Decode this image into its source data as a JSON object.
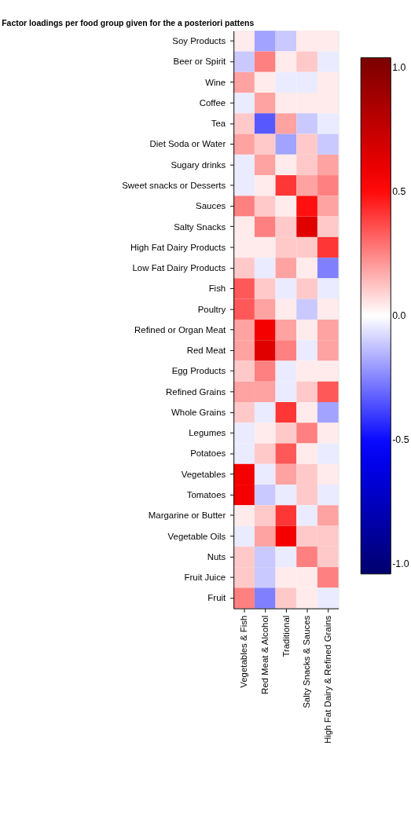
{
  "chart_data": {
    "type": "heatmap",
    "title": "Factor loadings per food group given for the a posteriori pattens",
    "categories": [
      "Vegetables & Fish",
      "Red Meat & Alcohol",
      "Traditional",
      "Salty Snacks & Sauces",
      "High Fat Dairy & Refined Grains"
    ],
    "y_categories": [
      "Soy Products",
      "Beer or Spirit",
      "Wine",
      "Coffee",
      "Tea",
      "Diet Soda or Water",
      "Sugary drinks",
      "Sweet snacks or Desserts",
      "Sauces",
      "Salty Snacks",
      "High Fat Dairy Products",
      "Low Fat Dairy Products",
      "Fish",
      "Poultry",
      "Refined or Organ Meat",
      "Red Meat",
      "Egg Products",
      "Refined Grains",
      "Whole Grains",
      "Legumes",
      "Potatoes",
      "Vegetables",
      "Tomatoes",
      "Margarine or Butter",
      "Vegetable Oils",
      "Nuts",
      "Fruit Juice",
      "Fruit"
    ],
    "cells": [
      [
        0.04,
        -0.19,
        -0.11,
        0.04,
        0.04
      ],
      [
        -0.11,
        0.26,
        0.04,
        0.11,
        -0.04
      ],
      [
        0.19,
        0.04,
        -0.04,
        -0.04,
        0.04
      ],
      [
        -0.04,
        0.19,
        0.04,
        0.04,
        0.04
      ],
      [
        0.11,
        -0.34,
        0.19,
        -0.11,
        -0.04
      ],
      [
        0.19,
        0.11,
        -0.19,
        0.11,
        -0.11
      ],
      [
        -0.04,
        0.19,
        0.04,
        0.11,
        0.19
      ],
      [
        -0.04,
        0.04,
        0.41,
        0.19,
        0.26
      ],
      [
        0.26,
        0.11,
        0.04,
        0.49,
        0.19
      ],
      [
        0.04,
        0.26,
        0.11,
        0.64,
        0.11
      ],
      [
        0.04,
        0.04,
        0.11,
        0.11,
        0.41
      ],
      [
        0.11,
        -0.04,
        0.19,
        0.04,
        -0.26
      ],
      [
        0.34,
        0.11,
        -0.04,
        0.11,
        -0.04
      ],
      [
        0.34,
        0.19,
        0.04,
        -0.11,
        0.04
      ],
      [
        0.19,
        0.56,
        0.19,
        0.04,
        0.19
      ],
      [
        0.19,
        0.64,
        0.26,
        -0.04,
        0.19
      ],
      [
        0.11,
        0.26,
        -0.04,
        0.04,
        0.04
      ],
      [
        0.19,
        0.19,
        -0.04,
        0.11,
        0.34
      ],
      [
        0.11,
        -0.04,
        0.41,
        0.04,
        -0.19
      ],
      [
        -0.04,
        0.04,
        0.11,
        0.26,
        0.04
      ],
      [
        -0.04,
        0.11,
        0.34,
        0.04,
        -0.04
      ],
      [
        0.56,
        -0.04,
        0.19,
        0.11,
        0.04
      ],
      [
        0.56,
        -0.11,
        -0.04,
        0.11,
        -0.04
      ],
      [
        0.04,
        0.11,
        0.41,
        -0.04,
        0.19
      ],
      [
        -0.04,
        0.19,
        0.56,
        0.11,
        0.11
      ],
      [
        0.11,
        -0.11,
        -0.04,
        0.26,
        0.11
      ],
      [
        0.11,
        -0.11,
        0.04,
        0.04,
        0.26
      ],
      [
        0.26,
        -0.26,
        0.11,
        0.04,
        -0.04
      ]
    ],
    "clim": [
      -1.04,
      1.04
    ],
    "cticks": [
      {
        "value": -1,
        "label": "-1.0"
      },
      {
        "value": -0.5,
        "label": "-0.5"
      },
      {
        "value": 0,
        "label": "0.0"
      },
      {
        "value": 0.5,
        "label": "0.5"
      },
      {
        "value": 1,
        "label": "1.0"
      }
    ]
  }
}
